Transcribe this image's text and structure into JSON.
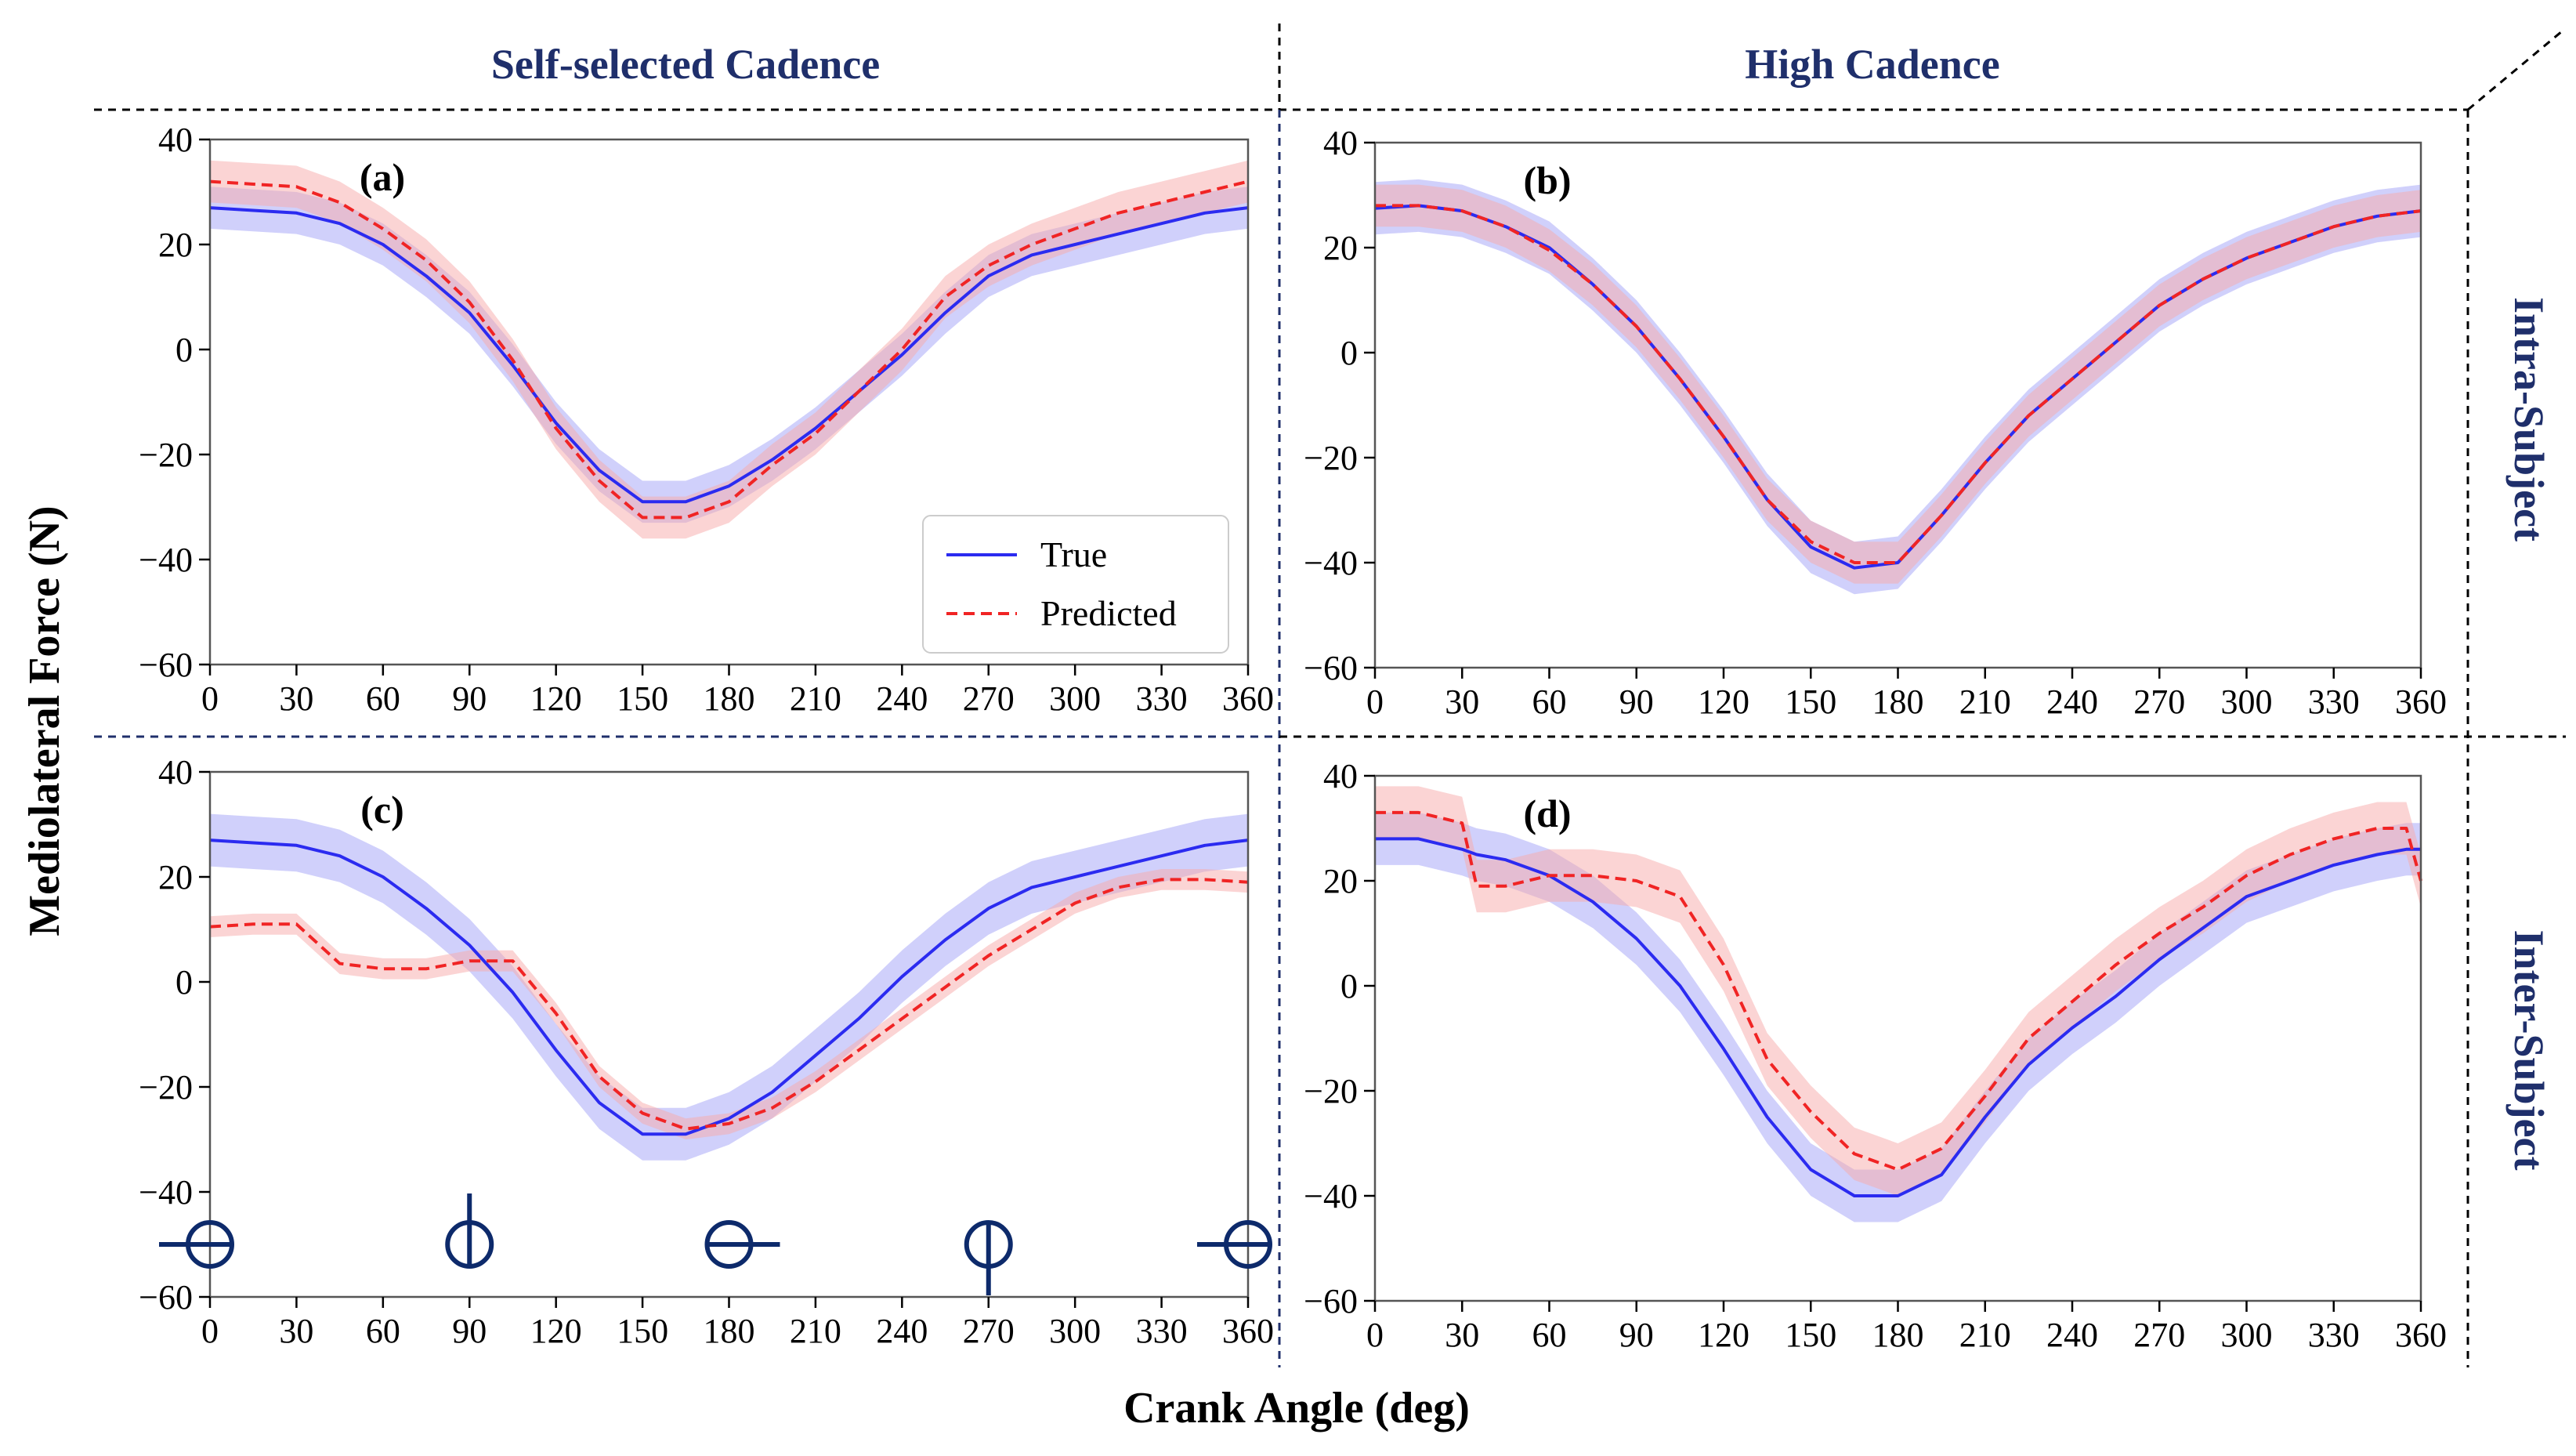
{
  "figure": {
    "col_titles": [
      "Self-selected Cadence",
      "High Cadence"
    ],
    "row_titles": [
      "Intra-Subject",
      "Inter-Subject"
    ],
    "ylabel": "Mediolateral Force (N)",
    "xlabel": "Crank Angle (deg)"
  },
  "colors": {
    "true_line": "#2b2bf0",
    "true_band": "#a9aaf7",
    "pred_line": "#f02424",
    "pred_band": "#f7a9a9",
    "title_blue": "#1f2f6b",
    "pedal_icon": "#0d2a6b"
  },
  "legend": {
    "entries": [
      "True",
      "Predicted"
    ],
    "position": "lower-right of panel (a)"
  },
  "pedal_icons": [
    {
      "angle": 0,
      "name": "pedal-position-0-icon"
    },
    {
      "angle": 90,
      "name": "pedal-position-90-icon"
    },
    {
      "angle": 180,
      "name": "pedal-position-180-icon"
    },
    {
      "angle": 270,
      "name": "pedal-position-270-icon"
    },
    {
      "angle": 360,
      "name": "pedal-position-360-icon"
    }
  ],
  "chart_data": [
    {
      "label": "(a)",
      "type": "line",
      "xlim": [
        0,
        360
      ],
      "ylim": [
        -60,
        40
      ],
      "xticks": [
        0,
        30,
        60,
        90,
        120,
        150,
        180,
        210,
        240,
        270,
        300,
        330,
        360
      ],
      "yticks": [
        40,
        20,
        0,
        -20,
        -40,
        -60
      ],
      "x": [
        0,
        15,
        30,
        45,
        60,
        75,
        90,
        105,
        120,
        135,
        150,
        165,
        180,
        195,
        210,
        225,
        240,
        255,
        270,
        285,
        300,
        315,
        330,
        345,
        360
      ],
      "series": [
        {
          "name": "True",
          "values": [
            27,
            26.5,
            26,
            24,
            20,
            14,
            7,
            -3,
            -14,
            -23,
            -29,
            -29,
            -26,
            -21,
            -15,
            -8,
            -1,
            7,
            14,
            18,
            20,
            22,
            24,
            26,
            27
          ],
          "band": 4
        },
        {
          "name": "Predicted",
          "values": [
            32,
            31.5,
            31,
            28,
            23,
            17,
            9,
            -2,
            -15,
            -25,
            -32,
            -32,
            -29,
            -22,
            -16,
            -8,
            0,
            10,
            16,
            20,
            23,
            26,
            28,
            30,
            32
          ],
          "band": 4
        }
      ]
    },
    {
      "label": "(b)",
      "type": "line",
      "xlim": [
        0,
        360
      ],
      "ylim": [
        -60,
        40
      ],
      "xticks": [
        0,
        30,
        60,
        90,
        120,
        150,
        180,
        210,
        240,
        270,
        300,
        330,
        360
      ],
      "yticks": [
        40,
        20,
        0,
        -20,
        -40,
        -60
      ],
      "x": [
        0,
        15,
        30,
        45,
        60,
        75,
        90,
        105,
        120,
        135,
        150,
        165,
        180,
        195,
        210,
        225,
        240,
        255,
        270,
        285,
        300,
        315,
        330,
        345,
        360
      ],
      "series": [
        {
          "name": "True",
          "values": [
            27.5,
            28,
            27,
            24,
            20,
            13,
            5,
            -5,
            -16,
            -28,
            -37,
            -41,
            -40,
            -31,
            -21,
            -12,
            -5,
            2,
            9,
            14,
            18,
            21,
            24,
            26,
            27
          ],
          "band": 5
        },
        {
          "name": "Predicted",
          "values": [
            28,
            28,
            27,
            24,
            19.5,
            13,
            5,
            -5,
            -16,
            -28,
            -36,
            -40,
            -40,
            -31,
            -21,
            -12,
            -5,
            2,
            9,
            14,
            18,
            21,
            24,
            26,
            27
          ],
          "band": 4
        }
      ]
    },
    {
      "label": "(c)",
      "type": "line",
      "xlim": [
        0,
        360
      ],
      "ylim": [
        -60,
        40
      ],
      "xticks": [
        0,
        30,
        60,
        90,
        120,
        150,
        180,
        210,
        240,
        270,
        300,
        330,
        360
      ],
      "yticks": [
        40,
        20,
        0,
        -20,
        -40,
        -60
      ],
      "x": [
        0,
        15,
        30,
        45,
        60,
        75,
        90,
        105,
        120,
        135,
        150,
        165,
        180,
        195,
        210,
        225,
        240,
        255,
        270,
        285,
        300,
        315,
        330,
        345,
        360
      ],
      "series": [
        {
          "name": "True",
          "values": [
            27,
            26.5,
            26,
            24,
            20,
            14,
            7,
            -2,
            -13,
            -23,
            -29,
            -29,
            -26,
            -21,
            -14,
            -7,
            1,
            8,
            14,
            18,
            20,
            22,
            24,
            26,
            27
          ],
          "band": 5
        },
        {
          "name": "Predicted",
          "values": [
            10.5,
            11,
            11,
            3.5,
            2.5,
            2.5,
            4,
            4,
            -6,
            -18,
            -25,
            -28,
            -27,
            -24,
            -19,
            -13,
            -7,
            -1,
            5,
            10,
            15,
            18,
            19.5,
            19.5,
            19
          ],
          "band": 2
        }
      ]
    },
    {
      "label": "(d)",
      "type": "line",
      "xlim": [
        0,
        360
      ],
      "ylim": [
        -60,
        40
      ],
      "xticks": [
        0,
        30,
        60,
        90,
        120,
        150,
        180,
        210,
        240,
        270,
        300,
        330,
        360
      ],
      "yticks": [
        40,
        20,
        0,
        -20,
        -40,
        -60
      ],
      "x": [
        0,
        15,
        30,
        35,
        45,
        60,
        75,
        90,
        105,
        120,
        135,
        150,
        165,
        180,
        195,
        210,
        225,
        240,
        255,
        270,
        285,
        300,
        315,
        330,
        345,
        355,
        360
      ],
      "series": [
        {
          "name": "True",
          "values": [
            28,
            28,
            26,
            25,
            24,
            21,
            16,
            9,
            0,
            -12,
            -25,
            -35,
            -40,
            -40,
            -36,
            -25,
            -15,
            -8,
            -2,
            5,
            11,
            17,
            20,
            23,
            25,
            26,
            26
          ],
          "band": 5
        },
        {
          "name": "Predicted",
          "values": [
            33,
            33,
            31,
            19,
            19,
            21,
            21,
            20,
            17,
            4,
            -14,
            -24,
            -32,
            -35,
            -31,
            -21,
            -10,
            -3,
            4,
            10,
            15,
            21,
            25,
            28,
            30,
            30,
            20
          ],
          "band": 5
        }
      ]
    }
  ]
}
